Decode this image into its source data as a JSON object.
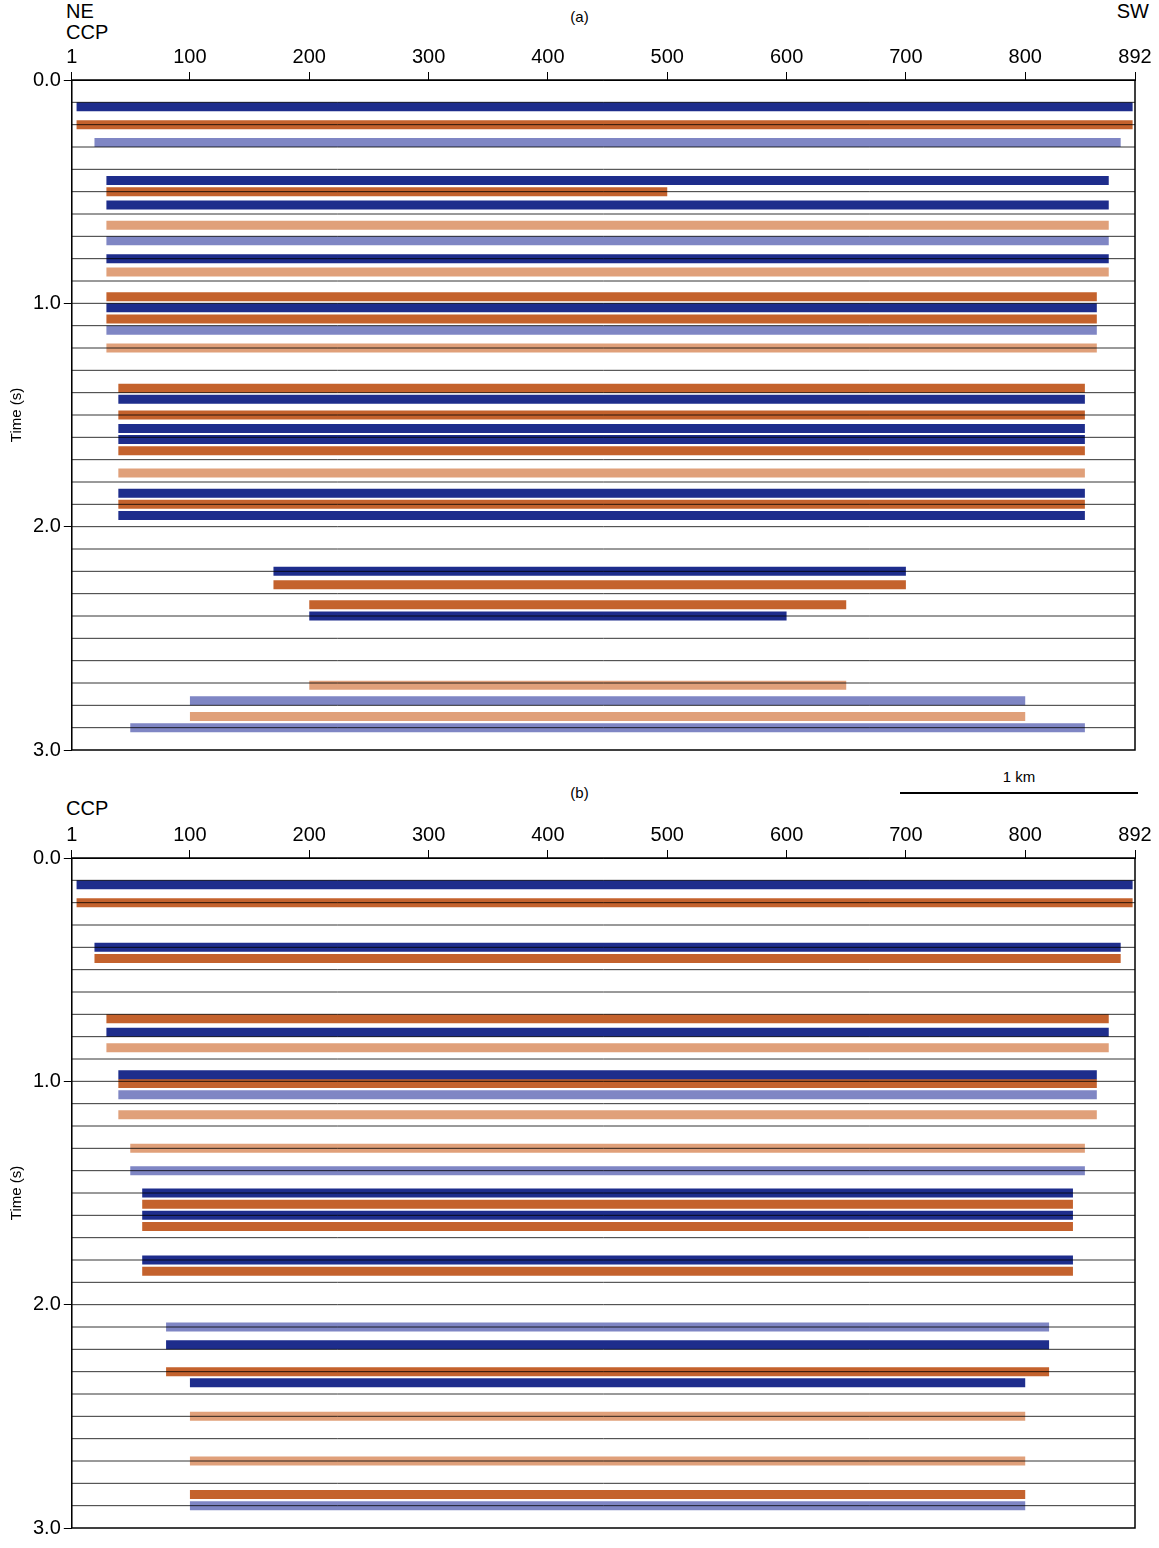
{
  "chart_data": [
    {
      "type": "line",
      "panel": "(a)",
      "direction_labels": [
        "NE",
        "SW"
      ],
      "x_label": "CCP",
      "y_label": "Time (s)",
      "xlim": [
        1,
        892
      ],
      "xticks": [
        1,
        100,
        200,
        300,
        400,
        500,
        600,
        700,
        800,
        892
      ],
      "ylim": [
        0,
        3
      ],
      "yticks": [
        {
          "value": 0,
          "label": "0.0"
        },
        {
          "value": 1,
          "label": "1.0"
        },
        {
          "value": 2,
          "label": "2.0"
        },
        {
          "value": 3,
          "label": "3.0"
        }
      ],
      "horizon_lines": [
        0.1,
        0.2,
        0.3,
        0.4,
        0.5,
        0.6,
        0.7,
        0.8,
        0.9,
        1.0,
        1.1,
        1.2,
        1.3,
        1.4,
        1.5,
        1.6,
        1.7,
        1.8,
        1.9,
        2.0,
        2.1,
        2.2,
        2.3,
        2.4,
        2.5,
        2.6,
        2.7,
        2.8,
        2.9
      ],
      "series": [
        {
          "color": "#1e2d8c",
          "x": [
            5,
            890
          ],
          "values": [
            0.12,
            0.12
          ]
        },
        {
          "color": "#c4622d",
          "x": [
            5,
            890
          ],
          "values": [
            0.2,
            0.2
          ]
        },
        {
          "color": "#7f86c4",
          "x": [
            20,
            880
          ],
          "values": [
            0.28,
            0.28
          ]
        },
        {
          "color": "#1e2d8c",
          "x": [
            30,
            870
          ],
          "values": [
            0.45,
            0.45
          ]
        },
        {
          "color": "#c4622d",
          "x": [
            30,
            500
          ],
          "values": [
            0.5,
            0.5
          ]
        },
        {
          "color": "#1e2d8c",
          "x": [
            30,
            870
          ],
          "values": [
            0.56,
            0.56
          ]
        },
        {
          "color": "#e0a07a",
          "x": [
            30,
            870
          ],
          "values": [
            0.65,
            0.65
          ]
        },
        {
          "color": "#7f86c4",
          "x": [
            30,
            870
          ],
          "values": [
            0.72,
            0.72
          ]
        },
        {
          "color": "#1e2d8c",
          "x": [
            30,
            870
          ],
          "values": [
            0.8,
            0.8
          ]
        },
        {
          "color": "#e0a07a",
          "x": [
            30,
            870
          ],
          "values": [
            0.86,
            0.86
          ]
        },
        {
          "color": "#c4622d",
          "x": [
            30,
            860
          ],
          "values": [
            0.97,
            0.97
          ]
        },
        {
          "color": "#1e2d8c",
          "x": [
            30,
            860
          ],
          "values": [
            1.02,
            1.02
          ]
        },
        {
          "color": "#c4622d",
          "x": [
            30,
            860
          ],
          "values": [
            1.07,
            1.07
          ]
        },
        {
          "color": "#7f86c4",
          "x": [
            30,
            860
          ],
          "values": [
            1.12,
            1.12
          ]
        },
        {
          "color": "#e0a07a",
          "x": [
            30,
            860
          ],
          "values": [
            1.2,
            1.2
          ]
        },
        {
          "color": "#c4622d",
          "x": [
            40,
            850
          ],
          "values": [
            1.38,
            1.38
          ]
        },
        {
          "color": "#1e2d8c",
          "x": [
            40,
            850
          ],
          "values": [
            1.43,
            1.43
          ]
        },
        {
          "color": "#c4622d",
          "x": [
            40,
            850
          ],
          "values": [
            1.5,
            1.5
          ]
        },
        {
          "color": "#1e2d8c",
          "x": [
            40,
            850
          ],
          "values": [
            1.56,
            1.56
          ]
        },
        {
          "color": "#1e2d8c",
          "x": [
            40,
            850
          ],
          "values": [
            1.61,
            1.61
          ]
        },
        {
          "color": "#c4622d",
          "x": [
            40,
            850
          ],
          "values": [
            1.66,
            1.66
          ]
        },
        {
          "color": "#e0a07a",
          "x": [
            40,
            850
          ],
          "values": [
            1.76,
            1.76
          ]
        },
        {
          "color": "#1e2d8c",
          "x": [
            40,
            850
          ],
          "values": [
            1.85,
            1.85
          ]
        },
        {
          "color": "#c4622d",
          "x": [
            40,
            850
          ],
          "values": [
            1.9,
            1.9
          ]
        },
        {
          "color": "#1e2d8c",
          "x": [
            40,
            850
          ],
          "values": [
            1.95,
            1.95
          ]
        },
        {
          "color": "#1e2d8c",
          "x": [
            170,
            700
          ],
          "values": [
            2.2,
            2.2
          ]
        },
        {
          "color": "#c4622d",
          "x": [
            170,
            700
          ],
          "values": [
            2.26,
            2.26
          ]
        },
        {
          "color": "#c4622d",
          "x": [
            200,
            650
          ],
          "values": [
            2.35,
            2.35
          ]
        },
        {
          "color": "#1e2d8c",
          "x": [
            200,
            600
          ],
          "values": [
            2.4,
            2.4
          ]
        },
        {
          "color": "#e0a07a",
          "x": [
            200,
            650
          ],
          "values": [
            2.71,
            2.71
          ]
        },
        {
          "color": "#7f86c4",
          "x": [
            100,
            800
          ],
          "values": [
            2.78,
            2.78
          ]
        },
        {
          "color": "#e0a07a",
          "x": [
            100,
            800
          ],
          "values": [
            2.85,
            2.85
          ]
        },
        {
          "color": "#7f86c4",
          "x": [
            50,
            850
          ],
          "values": [
            2.9,
            2.9
          ]
        }
      ]
    },
    {
      "type": "line",
      "panel": "(b)",
      "x_label": "CCP",
      "y_label": "Time (s)",
      "xlim": [
        1,
        892
      ],
      "xticks": [
        1,
        100,
        200,
        300,
        400,
        500,
        600,
        700,
        800,
        892
      ],
      "ylim": [
        0,
        3
      ],
      "yticks": [
        {
          "value": 0,
          "label": "0.0"
        },
        {
          "value": 1,
          "label": "1.0"
        },
        {
          "value": 2,
          "label": "2.0"
        },
        {
          "value": 3,
          "label": "3.0"
        }
      ],
      "horizon_lines": [
        0.1,
        0.2,
        0.3,
        0.4,
        0.5,
        0.6,
        0.7,
        0.8,
        0.9,
        1.0,
        1.1,
        1.2,
        1.3,
        1.4,
        1.5,
        1.6,
        1.7,
        1.8,
        1.9,
        2.0,
        2.1,
        2.2,
        2.3,
        2.4,
        2.5,
        2.6,
        2.7,
        2.8,
        2.9
      ],
      "series": [
        {
          "color": "#1e2d8c",
          "x": [
            5,
            890
          ],
          "values": [
            0.12,
            0.12
          ]
        },
        {
          "color": "#c4622d",
          "x": [
            5,
            890
          ],
          "values": [
            0.2,
            0.2
          ]
        },
        {
          "color": "#1e2d8c",
          "x": [
            20,
            880
          ],
          "values": [
            0.4,
            0.4
          ]
        },
        {
          "color": "#c4622d",
          "x": [
            20,
            880
          ],
          "values": [
            0.45,
            0.45
          ]
        },
        {
          "color": "#c4622d",
          "x": [
            30,
            870
          ],
          "values": [
            0.72,
            0.72
          ]
        },
        {
          "color": "#1e2d8c",
          "x": [
            30,
            870
          ],
          "values": [
            0.78,
            0.78
          ]
        },
        {
          "color": "#e0a07a",
          "x": [
            30,
            870
          ],
          "values": [
            0.85,
            0.85
          ]
        },
        {
          "color": "#1e2d8c",
          "x": [
            40,
            860
          ],
          "values": [
            0.97,
            0.97
          ]
        },
        {
          "color": "#c4622d",
          "x": [
            40,
            860
          ],
          "values": [
            1.01,
            1.01
          ]
        },
        {
          "color": "#7f86c4",
          "x": [
            40,
            860
          ],
          "values": [
            1.06,
            1.06
          ]
        },
        {
          "color": "#e0a07a",
          "x": [
            40,
            860
          ],
          "values": [
            1.15,
            1.15
          ]
        },
        {
          "color": "#e0a07a",
          "x": [
            50,
            850
          ],
          "values": [
            1.3,
            1.3
          ]
        },
        {
          "color": "#7f86c4",
          "x": [
            50,
            850
          ],
          "values": [
            1.4,
            1.4
          ]
        },
        {
          "color": "#1e2d8c",
          "x": [
            60,
            840
          ],
          "values": [
            1.5,
            1.5
          ]
        },
        {
          "color": "#c4622d",
          "x": [
            60,
            840
          ],
          "values": [
            1.55,
            1.55
          ]
        },
        {
          "color": "#1e2d8c",
          "x": [
            60,
            840
          ],
          "values": [
            1.6,
            1.6
          ]
        },
        {
          "color": "#c4622d",
          "x": [
            60,
            840
          ],
          "values": [
            1.65,
            1.65
          ]
        },
        {
          "color": "#1e2d8c",
          "x": [
            60,
            840
          ],
          "values": [
            1.8,
            1.8
          ]
        },
        {
          "color": "#c4622d",
          "x": [
            60,
            840
          ],
          "values": [
            1.85,
            1.85
          ]
        },
        {
          "color": "#7f86c4",
          "x": [
            80,
            820
          ],
          "values": [
            2.1,
            2.1
          ]
        },
        {
          "color": "#1e2d8c",
          "x": [
            80,
            820
          ],
          "values": [
            2.18,
            2.18
          ]
        },
        {
          "color": "#c4622d",
          "x": [
            80,
            820
          ],
          "values": [
            2.3,
            2.3
          ]
        },
        {
          "color": "#1e2d8c",
          "x": [
            100,
            800
          ],
          "values": [
            2.35,
            2.35
          ]
        },
        {
          "color": "#e0a07a",
          "x": [
            100,
            800
          ],
          "values": [
            2.5,
            2.5
          ]
        },
        {
          "color": "#e0a07a",
          "x": [
            100,
            800
          ],
          "values": [
            2.7,
            2.7
          ]
        },
        {
          "color": "#c4622d",
          "x": [
            100,
            800
          ],
          "values": [
            2.85,
            2.85
          ]
        },
        {
          "color": "#7f86c4",
          "x": [
            100,
            800
          ],
          "values": [
            2.9,
            2.9
          ]
        }
      ]
    }
  ],
  "scale_bar": {
    "label": "1 km"
  }
}
